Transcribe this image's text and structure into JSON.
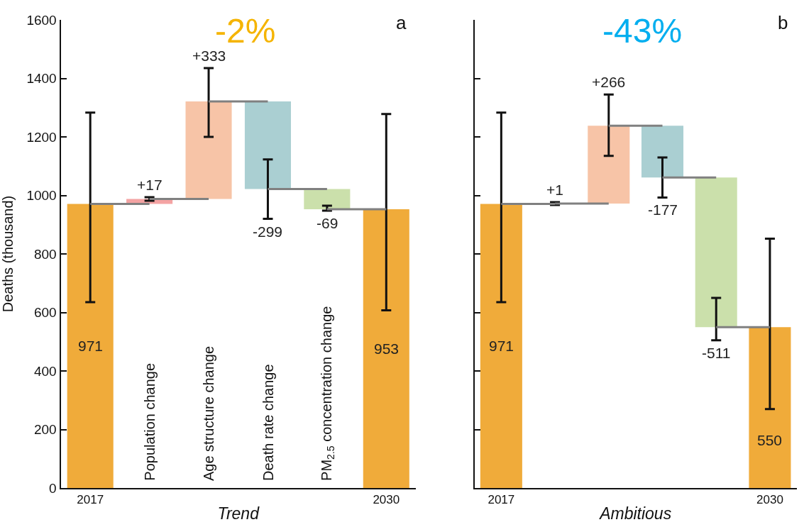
{
  "chart_data": [
    {
      "type": "bar",
      "ylabel": "Deaths (thousand)",
      "xlabel": "Trend",
      "categories": [
        "2017",
        "Population change",
        "Age structure change",
        "Death rate change",
        "PM$_{2.5}$ concentration change",
        "2030"
      ],
      "values": [
        971,
        17,
        333,
        -299,
        -69,
        953
      ],
      "base": [
        0,
        971,
        988,
        1321,
        1022,
        0
      ],
      "colors": [
        "#f0ab3a",
        "#f4a3a3",
        "#f7c4a7",
        "#aacfd2",
        "#cbe0ab",
        "#f0ab3a"
      ],
      "errors": [
        [
          635,
          1283
        ],
        [
          982,
          994
        ],
        [
          1200,
          1435
        ],
        [
          920,
          1123
        ],
        [
          948,
          965
        ],
        [
          607,
          1278
        ]
      ],
      "value_labels": [
        "971",
        "+17",
        "+333",
        "-299",
        "-69",
        "953"
      ],
      "ylim": [
        0,
        1600
      ],
      "yticks": [
        0,
        200,
        400,
        600,
        800,
        1000,
        1200,
        1400,
        1600
      ],
      "annotations": [
        "-2%",
        "a"
      ]
    },
    {
      "type": "bar",
      "xlabel": "Ambitious",
      "categories": [
        "2017",
        null,
        null,
        null,
        null,
        "2030"
      ],
      "values": [
        971,
        1,
        266,
        -177,
        -511,
        550
      ],
      "base": [
        0,
        971,
        972,
        1238,
        1061,
        0
      ],
      "colors": [
        "#f0ab3a",
        "#f4a3a3",
        "#f7c4a7",
        "#aacfd2",
        "#cbe0ab",
        "#f0ab3a"
      ],
      "errors": [
        [
          635,
          1283
        ],
        [
          967,
          977
        ],
        [
          1135,
          1345
        ],
        [
          993,
          1130
        ],
        [
          505,
          650
        ],
        [
          270,
          852
        ]
      ],
      "value_labels": [
        "971",
        "+1",
        "+266",
        "-177",
        "-511",
        "550"
      ],
      "ylim": [
        0,
        1600
      ],
      "yticks": [
        0,
        200,
        400,
        600,
        800,
        1000,
        1200,
        1400,
        1600
      ],
      "tick_labels": "x",
      "annotations": [
        "-43%",
        "b"
      ]
    }
  ]
}
